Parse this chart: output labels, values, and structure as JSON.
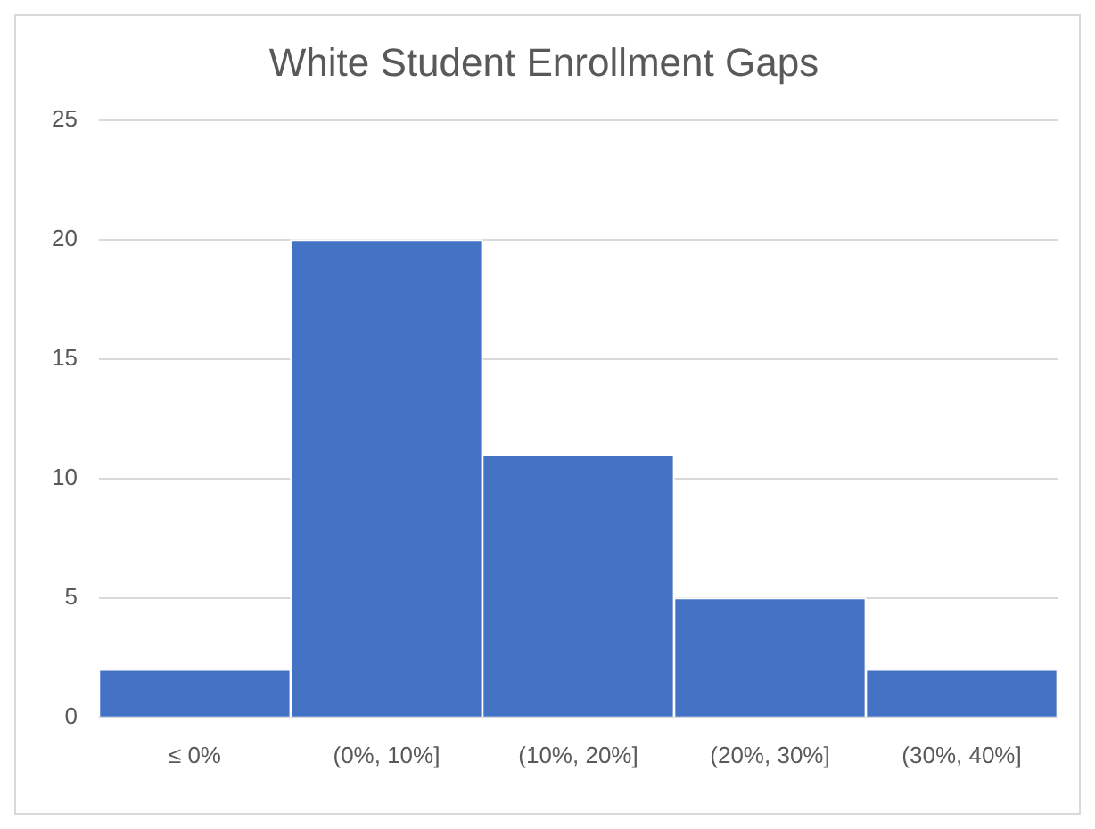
{
  "chart_data": {
    "type": "bar",
    "title": "White Student Enrollment Gaps",
    "categories": [
      "≤ 0%",
      "(0%, 10%]",
      "(10%, 20%]",
      "(20%, 30%]",
      "(30%, 40%]"
    ],
    "values": [
      2,
      20,
      11,
      5,
      2
    ],
    "color": "#4472c4",
    "ylim": [
      0,
      25
    ],
    "yticks": [
      0,
      5,
      10,
      15,
      20,
      25
    ],
    "grid": "y"
  }
}
